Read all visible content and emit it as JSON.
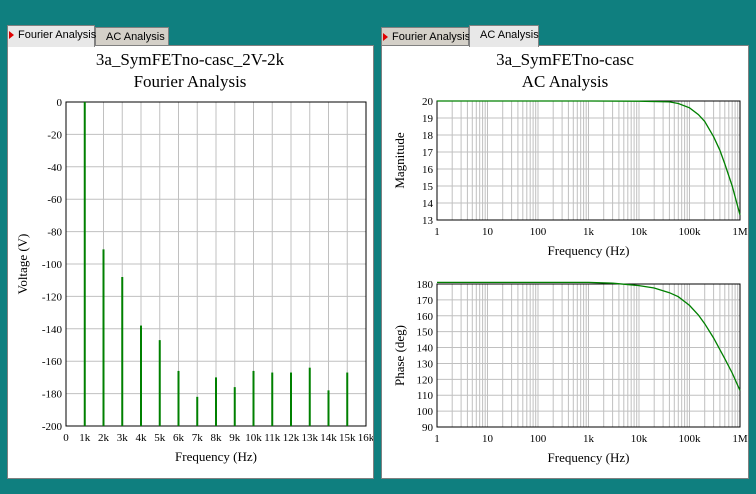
{
  "colors": {
    "background": "#0f7f7f",
    "trace": "#008000",
    "grid": "#c0c0c0",
    "tab_marker": "#e00000"
  },
  "left_panel": {
    "tabs": [
      {
        "label": "Fourier Analysis",
        "active": true
      },
      {
        "label": "AC Analysis",
        "active": false
      }
    ]
  },
  "right_panel": {
    "tabs": [
      {
        "label": "Fourier Analysis",
        "active": false
      },
      {
        "label": "AC Analysis",
        "active": true
      }
    ]
  },
  "chart_data": [
    {
      "type": "bar",
      "title": "3a_SymFETno-casc_2V-2k",
      "subtitle": "Fourier Analysis",
      "xlabel": "Frequency (Hz)",
      "ylabel": "Voltage (V)",
      "xlim": [
        0,
        16000
      ],
      "ylim": [
        -200,
        0
      ],
      "grid": true,
      "x_ticks": [
        0,
        1000,
        2000,
        3000,
        4000,
        5000,
        6000,
        7000,
        8000,
        9000,
        10000,
        11000,
        12000,
        13000,
        14000,
        15000,
        16000
      ],
      "x_tick_labels": [
        "0",
        "1k",
        "2k",
        "3k",
        "4k",
        "5k",
        "6k",
        "7k",
        "8k",
        "9k",
        "10k",
        "11k",
        "12k",
        "13k",
        "14k",
        "15k",
        "16k"
      ],
      "y_ticks": [
        0,
        -20,
        -40,
        -60,
        -80,
        -100,
        -120,
        -140,
        -160,
        -180,
        -200
      ],
      "y_tick_labels": [
        "0",
        "-20",
        "-40",
        "-60",
        "-80",
        "-100",
        "-120",
        "-140",
        "-160",
        "-180",
        "-200"
      ],
      "x": [
        1000,
        2000,
        3000,
        4000,
        5000,
        6000,
        7000,
        8000,
        9000,
        10000,
        11000,
        12000,
        13000,
        14000,
        15000
      ],
      "values": [
        0,
        -91,
        -108,
        -138,
        -147,
        -166,
        -182,
        -170,
        -176,
        -166,
        -167,
        -167,
        -164,
        -178,
        -167
      ]
    },
    {
      "type": "line",
      "title": "3a_SymFETno-casc",
      "subtitle": "AC Analysis",
      "xlabel": "Frequency (Hz)",
      "ylabel": "Magnitude",
      "xscale": "log",
      "xlim": [
        1,
        1000000
      ],
      "ylim": [
        13,
        20
      ],
      "grid": true,
      "x_ticks": [
        1,
        10,
        100,
        1000,
        10000,
        100000,
        1000000
      ],
      "x_tick_labels": [
        "1",
        "10",
        "100",
        "1k",
        "10k",
        "100k",
        "1M"
      ],
      "y_ticks": [
        20,
        19,
        18,
        17,
        16,
        15,
        14,
        13
      ],
      "y_tick_labels": [
        "20",
        "19",
        "18",
        "17",
        "16",
        "15",
        "14",
        "13"
      ],
      "x": [
        1,
        10,
        100,
        1000,
        10000,
        40000,
        60000,
        100000,
        150000,
        200000,
        300000,
        400000,
        500000,
        700000,
        1000000
      ],
      "y": [
        20,
        20,
        20,
        20,
        19.99,
        19.95,
        19.85,
        19.6,
        19.2,
        18.8,
        17.9,
        17.1,
        16.3,
        15,
        13.3
      ]
    },
    {
      "type": "line",
      "xlabel": "Frequency (Hz)",
      "ylabel": "Phase (deg)",
      "xscale": "log",
      "xlim": [
        1,
        1000000
      ],
      "ylim": [
        90,
        180
      ],
      "grid": true,
      "x_ticks": [
        1,
        10,
        100,
        1000,
        10000,
        100000,
        1000000
      ],
      "x_tick_labels": [
        "1",
        "10",
        "100",
        "1k",
        "10k",
        "100k",
        "1M"
      ],
      "y_ticks": [
        180,
        170,
        160,
        150,
        140,
        130,
        120,
        110,
        100,
        90
      ],
      "y_tick_labels": [
        "180",
        "170",
        "160",
        "150",
        "140",
        "130",
        "120",
        "110",
        "100",
        "90"
      ],
      "x": [
        1,
        100,
        1000,
        3000,
        10000,
        20000,
        40000,
        60000,
        100000,
        150000,
        200000,
        300000,
        500000,
        700000,
        1000000
      ],
      "y": [
        181,
        181,
        181,
        180.5,
        179,
        177.5,
        174.5,
        172,
        166.5,
        160.5,
        155,
        146,
        133,
        124,
        113
      ]
    }
  ]
}
